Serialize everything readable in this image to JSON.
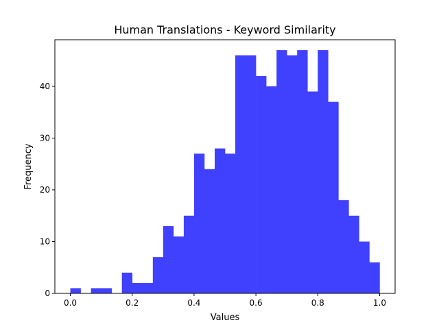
{
  "chart_data": {
    "type": "bar",
    "title": "Human Translations - Keyword Similarity",
    "xlabel": "Values",
    "ylabel": "Frequency",
    "xlim": [
      -0.05,
      1.05
    ],
    "ylim": [
      0,
      49
    ],
    "xticks": [
      0.0,
      0.2,
      0.4,
      0.6,
      0.8,
      1.0
    ],
    "xtick_labels": [
      "0.0",
      "0.2",
      "0.4",
      "0.6",
      "0.8",
      "1.0"
    ],
    "yticks": [
      0,
      10,
      20,
      30,
      40
    ],
    "ytick_labels": [
      "0",
      "10",
      "20",
      "30",
      "40"
    ],
    "bin_edges": [
      0.0,
      0.0333,
      0.0667,
      0.1,
      0.1333,
      0.1667,
      0.2,
      0.2333,
      0.2667,
      0.3,
      0.3333,
      0.3667,
      0.4,
      0.4333,
      0.4667,
      0.5,
      0.5333,
      0.5667,
      0.6,
      0.6333,
      0.6667,
      0.7,
      0.7333,
      0.7667,
      0.8,
      0.8333,
      0.8667,
      0.9,
      0.9333,
      0.9667,
      1.0
    ],
    "values": [
      1,
      0,
      1,
      1,
      0,
      4,
      2,
      2,
      7,
      13,
      11,
      15,
      27,
      24,
      28,
      27,
      46,
      46,
      42,
      40,
      47,
      46,
      47,
      39,
      47,
      37,
      18,
      15,
      10,
      6
    ],
    "bar_color": "#4040ff",
    "grid": false
  }
}
